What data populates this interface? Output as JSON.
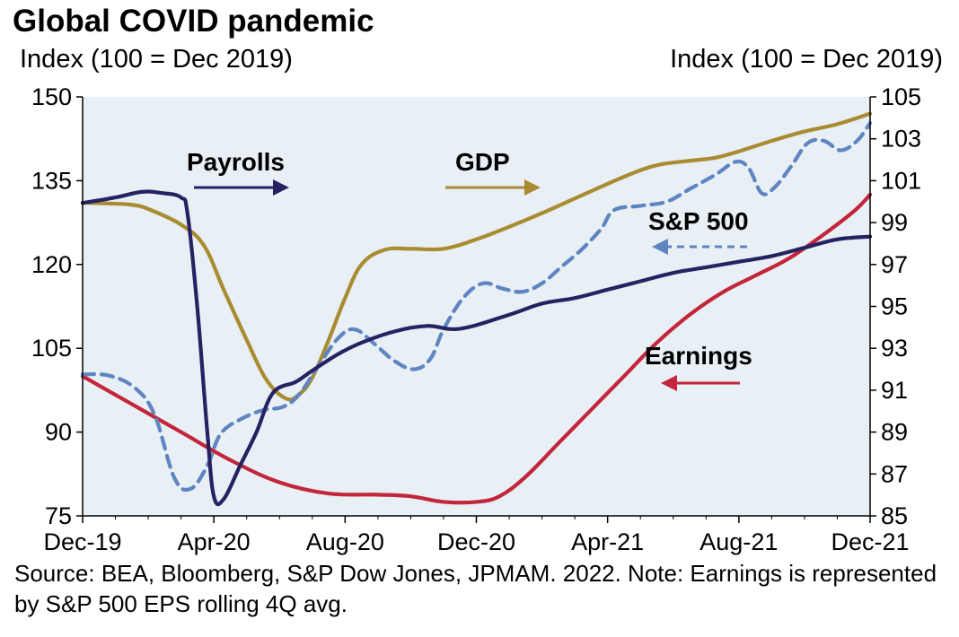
{
  "chart_data": {
    "type": "line",
    "title": "Global COVID pandemic",
    "ylabel_left": "Index (100 = Dec 2019)",
    "ylabel_right": "Index (100 = Dec 2019)",
    "x_tick_labels": [
      "Dec-19",
      "Apr-20",
      "Aug-20",
      "Dec-20",
      "Apr-21",
      "Aug-21",
      "Dec-21"
    ],
    "x_range_months": [
      0,
      24
    ],
    "left_axis": {
      "min": 75,
      "max": 150,
      "ticks": [
        "150",
        "135",
        "120",
        "105",
        "90",
        "75"
      ]
    },
    "right_axis": {
      "min": 85,
      "max": 105,
      "ticks": [
        "105",
        "103",
        "101",
        "99",
        "97",
        "95",
        "93",
        "91",
        "89",
        "87",
        "85"
      ]
    },
    "series": [
      {
        "name": "Payrolls",
        "axis": "left",
        "color": "#262262",
        "dashed": false,
        "points": [
          [
            0,
            131
          ],
          [
            1,
            132
          ],
          [
            1.8,
            133
          ],
          [
            2.4,
            132.8
          ],
          [
            3,
            132
          ],
          [
            3.2,
            129
          ],
          [
            3.5,
            112
          ],
          [
            3.8,
            90
          ],
          [
            4,
            78.5
          ],
          [
            4.3,
            78
          ],
          [
            4.8,
            84
          ],
          [
            5.3,
            90
          ],
          [
            5.8,
            97
          ],
          [
            6.5,
            99
          ],
          [
            7,
            101
          ],
          [
            7.8,
            104
          ],
          [
            8.5,
            106
          ],
          [
            9.5,
            108
          ],
          [
            10.5,
            109
          ],
          [
            11.5,
            108.5
          ],
          [
            13,
            111
          ],
          [
            14,
            113
          ],
          [
            15,
            114
          ],
          [
            16,
            115.5
          ],
          [
            17,
            117
          ],
          [
            18,
            118.5
          ],
          [
            19,
            119.5
          ],
          [
            20,
            120.5
          ],
          [
            21,
            121.5
          ],
          [
            22,
            123
          ],
          [
            23,
            124.5
          ],
          [
            24,
            125
          ]
        ]
      },
      {
        "name": "GDP",
        "axis": "right",
        "color": "#A98C31",
        "dashed": false,
        "points": [
          [
            0,
            99.95
          ],
          [
            1,
            99.9
          ],
          [
            1.5,
            99.85
          ],
          [
            2,
            99.65
          ],
          [
            3,
            98.9
          ],
          [
            3.7,
            97.9
          ],
          [
            4.3,
            95.8
          ],
          [
            5,
            93.4
          ],
          [
            5.6,
            91.5
          ],
          [
            6.2,
            90.6
          ],
          [
            6.6,
            90.8
          ],
          [
            7,
            91.6
          ],
          [
            7.5,
            93.4
          ],
          [
            8,
            95.4
          ],
          [
            8.5,
            97.0
          ],
          [
            9.2,
            97.7
          ],
          [
            10,
            97.75
          ],
          [
            11,
            97.75
          ],
          [
            12,
            98.2
          ],
          [
            13,
            98.8
          ],
          [
            14,
            99.45
          ],
          [
            15,
            100.15
          ],
          [
            16,
            100.85
          ],
          [
            17,
            101.5
          ],
          [
            17.7,
            101.8
          ],
          [
            18.5,
            101.95
          ],
          [
            19.3,
            102.1
          ],
          [
            20,
            102.4
          ],
          [
            21,
            102.9
          ],
          [
            22,
            103.35
          ],
          [
            23,
            103.7
          ],
          [
            24,
            104.2
          ]
        ]
      },
      {
        "name": "S&P 500",
        "axis": "right",
        "color": "#5F85C1",
        "dashed": true,
        "points": [
          [
            0,
            91.75
          ],
          [
            0.8,
            91.7
          ],
          [
            1.6,
            91.1
          ],
          [
            2.2,
            89.8
          ],
          [
            2.8,
            86.8
          ],
          [
            3.3,
            86.3
          ],
          [
            3.8,
            87.4
          ],
          [
            4.2,
            88.9
          ],
          [
            4.8,
            89.6
          ],
          [
            5.5,
            90.05
          ],
          [
            6.1,
            90.2
          ],
          [
            6.6,
            90.8
          ],
          [
            7.2,
            92.2
          ],
          [
            7.8,
            93.5
          ],
          [
            8.3,
            93.9
          ],
          [
            8.9,
            93.2
          ],
          [
            9.5,
            92.4
          ],
          [
            10.1,
            92.0
          ],
          [
            10.6,
            92.5
          ],
          [
            11,
            93.9
          ],
          [
            11.6,
            95.4
          ],
          [
            12.2,
            96.1
          ],
          [
            12.8,
            95.85
          ],
          [
            13.4,
            95.7
          ],
          [
            14.0,
            96.1
          ],
          [
            14.6,
            96.9
          ],
          [
            15.2,
            97.7
          ],
          [
            15.8,
            98.7
          ],
          [
            16.2,
            99.6
          ],
          [
            17.0,
            99.8
          ],
          [
            17.8,
            100.0
          ],
          [
            18.5,
            100.6
          ],
          [
            19.3,
            101.3
          ],
          [
            19.9,
            101.9
          ],
          [
            20.3,
            101.6
          ],
          [
            20.7,
            100.4
          ],
          [
            21.1,
            100.7
          ],
          [
            21.6,
            101.7
          ],
          [
            22.1,
            102.8
          ],
          [
            22.6,
            102.9
          ],
          [
            23.1,
            102.45
          ],
          [
            23.6,
            102.9
          ],
          [
            24,
            103.75
          ]
        ]
      },
      {
        "name": "Earnings",
        "axis": "left",
        "color": "#C3253A",
        "dashed": false,
        "points": [
          [
            0,
            100
          ],
          [
            1.5,
            95
          ],
          [
            3,
            90
          ],
          [
            4.5,
            85
          ],
          [
            6,
            81
          ],
          [
            7.5,
            79
          ],
          [
            9,
            78.8
          ],
          [
            10,
            78.5
          ],
          [
            11,
            77.5
          ],
          [
            12,
            77.5
          ],
          [
            12.7,
            78.5
          ],
          [
            13.5,
            82
          ],
          [
            14.5,
            88
          ],
          [
            15.5,
            94
          ],
          [
            16.5,
            100
          ],
          [
            17.5,
            106
          ],
          [
            18.5,
            111
          ],
          [
            19.5,
            115
          ],
          [
            20.5,
            118
          ],
          [
            21.5,
            121
          ],
          [
            22.5,
            125
          ],
          [
            23.5,
            129.5
          ],
          [
            24,
            132.5
          ]
        ]
      }
    ],
    "series_labels": [
      "Payrolls",
      "GDP",
      "S&P 500",
      "Earnings"
    ]
  },
  "source_note": "Source: BEA, Bloomberg, S&P Dow Jones, JPMAM. 2022. Note: Earnings is represented by S&P 500 EPS rolling 4Q avg."
}
